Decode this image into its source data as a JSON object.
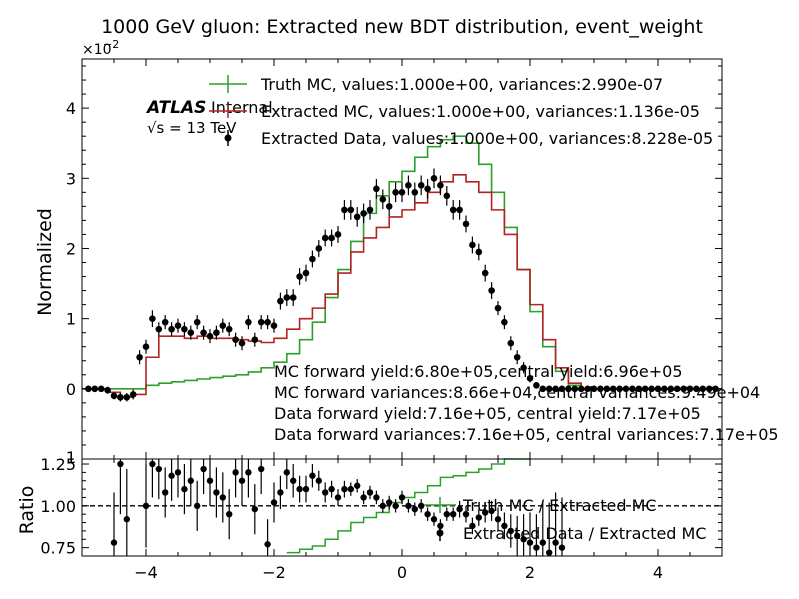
{
  "title": "1000 GeV gluon: Extracted new BDT distribution, event_weight",
  "top_panel": {
    "ylabel": "Normalized",
    "multiplier_base": "×10",
    "multiplier_exp": "−2",
    "yticks": [
      "0",
      "1",
      "2",
      "3",
      "4"
    ],
    "ytick_values": [
      0,
      1,
      2,
      3,
      4
    ],
    "bottom_cut_label": "1"
  },
  "bottom_panel": {
    "ylabel": "Ratio",
    "yticks": [
      "0.75",
      "1.00",
      "1.25"
    ],
    "ytick_values": [
      0.75,
      1.0,
      1.25
    ]
  },
  "xticks": [
    "−4",
    "−2",
    "0",
    "2",
    "4"
  ],
  "xtick_values": [
    -4,
    -2,
    0,
    2,
    4
  ],
  "atlas_label": {
    "bold": "ATLAS",
    "regular": "Internal",
    "energy": "√s = 13 TeV"
  },
  "legend_top": [
    {
      "label": "Truth MC, values:1.000e+00, variances:2.990e-07",
      "color": "#2ca02c",
      "style": "errorbar-line"
    },
    {
      "label": "Extracted MC, values:1.000e+00, variances:1.136e-05",
      "color": "#b22222",
      "style": "step"
    },
    {
      "label": "Extracted Data, values:1.000e+00, variances:8.228e-05",
      "color": "#000000",
      "style": "marker"
    }
  ],
  "yield_text": [
    "MC forward yield:6.80e+05,central yield:6.96e+05",
    "MC forward variances:8.66e+04,central variances:9.49e+04",
    "Data forward yield:7.16e+05, central yield:7.17e+05",
    "Data forward variances:7.16e+05, central variances:7.17e+05"
  ],
  "legend_bottom": [
    {
      "label": "Truth MC / Extracted MC",
      "color": "#2ca02c"
    },
    {
      "label": "Extracted Data / Extracted MC",
      "color": "#000000"
    }
  ],
  "chart_data": {
    "type": "line",
    "title": "1000 GeV gluon: Extracted new BDT distribution, event_weight",
    "xlabel": "",
    "ylabel": "Normalized",
    "xlim": [
      -5,
      5
    ],
    "ylim": [
      -1,
      4.7
    ],
    "y_scale_multiplier": "1e-2",
    "grid": false,
    "legend_position": "top",
    "bin_edges": [
      -5.0,
      -4.8,
      -4.6,
      -4.4,
      -4.2,
      -4.0,
      -3.8,
      -3.6,
      -3.4,
      -3.2,
      -3.0,
      -2.8,
      -2.6,
      -2.4,
      -2.2,
      -2.0,
      -1.8,
      -1.6,
      -1.4,
      -1.2,
      -1.0,
      -0.8,
      -0.6,
      -0.4,
      -0.2,
      0.0,
      0.2,
      0.4,
      0.6,
      0.8,
      1.0,
      1.2,
      1.4,
      1.6,
      1.8,
      2.0,
      2.2,
      2.4,
      2.6,
      2.8,
      3.0,
      3.2,
      3.4,
      3.6,
      3.8,
      4.0,
      4.2,
      4.4,
      4.6,
      4.8,
      5.0
    ],
    "series": [
      {
        "name": "Truth MC",
        "color": "#2ca02c",
        "kind": "step",
        "values": [
          0.0,
          0.0,
          0.0,
          0.0,
          0.0,
          0.05,
          0.08,
          0.1,
          0.12,
          0.14,
          0.16,
          0.18,
          0.2,
          0.24,
          0.3,
          0.38,
          0.5,
          0.7,
          0.95,
          1.3,
          1.7,
          2.1,
          2.5,
          2.75,
          2.95,
          3.1,
          3.3,
          3.45,
          3.55,
          3.6,
          3.5,
          3.2,
          2.8,
          2.3,
          1.7,
          1.1,
          0.6,
          0.25,
          0.05,
          0.0,
          0.0,
          0.0,
          0.0,
          0.0,
          0.0,
          0.0,
          0.0,
          0.0,
          0.0,
          0.0
        ]
      },
      {
        "name": "Extracted MC",
        "color": "#b22222",
        "kind": "step",
        "values": [
          0.0,
          0.0,
          -0.05,
          -0.12,
          -0.08,
          0.45,
          0.75,
          0.75,
          0.72,
          0.75,
          0.72,
          0.72,
          0.7,
          0.68,
          0.66,
          0.72,
          0.85,
          1.0,
          1.15,
          1.35,
          1.65,
          1.95,
          2.15,
          2.3,
          2.45,
          2.55,
          2.65,
          2.8,
          2.95,
          3.05,
          2.95,
          2.8,
          2.55,
          2.2,
          1.7,
          1.2,
          0.7,
          0.3,
          0.08,
          0.0,
          0.0,
          0.0,
          0.0,
          0.0,
          0.0,
          0.0,
          0.0,
          0.0,
          0.0,
          0.0
        ]
      },
      {
        "name": "Extracted Data",
        "color": "#000000",
        "kind": "points",
        "x": [
          -4.9,
          -4.8,
          -4.7,
          -4.6,
          -4.5,
          -4.4,
          -4.3,
          -4.2,
          -4.1,
          -4.0,
          -3.9,
          -3.8,
          -3.7,
          -3.6,
          -3.5,
          -3.4,
          -3.3,
          -3.2,
          -3.1,
          -3.0,
          -2.9,
          -2.8,
          -2.7,
          -2.6,
          -2.5,
          -2.4,
          -2.3,
          -2.2,
          -2.1,
          -2.0,
          -1.9,
          -1.8,
          -1.7,
          -1.6,
          -1.5,
          -1.4,
          -1.3,
          -1.2,
          -1.1,
          -1.0,
          -0.9,
          -0.8,
          -0.7,
          -0.6,
          -0.5,
          -0.4,
          -0.3,
          -0.2,
          -0.1,
          0.0,
          0.1,
          0.2,
          0.3,
          0.4,
          0.5,
          0.6,
          0.7,
          0.8,
          0.9,
          1.0,
          1.1,
          1.2,
          1.3,
          1.4,
          1.5,
          1.6,
          1.7,
          1.8,
          1.9,
          2.0,
          2.1,
          2.2,
          2.3,
          2.4,
          2.5,
          2.6,
          2.7,
          2.8,
          2.9,
          3.0,
          3.1,
          3.2,
          3.3,
          3.4,
          3.5,
          3.6,
          3.7,
          3.8,
          3.9,
          4.0,
          4.1,
          4.2,
          4.3,
          4.4,
          4.5,
          4.6,
          4.7,
          4.8,
          4.9
        ],
        "y": [
          0.0,
          0.0,
          0.0,
          -0.02,
          -0.1,
          -0.12,
          -0.12,
          -0.08,
          0.45,
          0.6,
          1.0,
          0.85,
          0.95,
          0.85,
          0.9,
          0.85,
          0.8,
          0.95,
          0.8,
          0.75,
          0.8,
          0.9,
          0.85,
          0.7,
          0.65,
          0.95,
          0.7,
          0.95,
          0.95,
          0.9,
          1.25,
          1.3,
          1.3,
          1.6,
          1.65,
          1.85,
          2.0,
          2.15,
          2.15,
          2.2,
          2.55,
          2.55,
          2.45,
          2.5,
          2.55,
          2.85,
          2.7,
          2.6,
          2.8,
          2.8,
          2.9,
          2.8,
          2.9,
          2.85,
          3.0,
          2.9,
          2.75,
          2.55,
          2.55,
          2.35,
          2.05,
          1.95,
          1.65,
          1.4,
          1.15,
          0.95,
          0.65,
          0.45,
          0.3,
          0.15,
          0.05,
          0.0,
          0.0,
          0.0,
          0.0,
          0.0,
          0.0,
          0.0,
          0.0,
          0.0,
          0.0,
          0.0,
          0.0,
          0.0,
          0.0,
          0.0,
          0.0,
          0.0,
          0.0,
          0.0,
          0.0,
          0.0,
          0.0,
          0.0,
          0.0,
          0.0,
          0.0,
          0.0,
          0.0
        ],
        "yerr": [
          0.02,
          0.02,
          0.02,
          0.05,
          0.05,
          0.06,
          0.06,
          0.07,
          0.1,
          0.1,
          0.12,
          0.1,
          0.1,
          0.1,
          0.1,
          0.1,
          0.1,
          0.1,
          0.1,
          0.1,
          0.1,
          0.1,
          0.1,
          0.1,
          0.1,
          0.1,
          0.1,
          0.1,
          0.1,
          0.1,
          0.12,
          0.12,
          0.12,
          0.12,
          0.12,
          0.12,
          0.12,
          0.12,
          0.12,
          0.12,
          0.14,
          0.14,
          0.14,
          0.14,
          0.14,
          0.14,
          0.14,
          0.14,
          0.14,
          0.14,
          0.14,
          0.14,
          0.14,
          0.14,
          0.14,
          0.14,
          0.14,
          0.14,
          0.14,
          0.12,
          0.12,
          0.12,
          0.12,
          0.12,
          0.1,
          0.1,
          0.1,
          0.1,
          0.08,
          0.06,
          0.04,
          0.02,
          0.02,
          0.02,
          0.02,
          0.02,
          0.02,
          0.02,
          0.02,
          0.02,
          0.02,
          0.02,
          0.02,
          0.02,
          0.02,
          0.02,
          0.02,
          0.02,
          0.02,
          0.02,
          0.02,
          0.02,
          0.02,
          0.02,
          0.02,
          0.02,
          0.02,
          0.02,
          0.02
        ]
      }
    ],
    "ratio_panel": {
      "ylabel": "Ratio",
      "ylim": [
        0.7,
        1.28
      ],
      "reference_line": 1.0,
      "series": [
        {
          "name": "Truth MC / Extracted MC",
          "color": "#2ca02c",
          "kind": "step",
          "x": [
            -1.8,
            -1.6,
            -1.4,
            -1.2,
            -1.0,
            -0.8,
            -0.6,
            -0.4,
            -0.2,
            0.0,
            0.2,
            0.4,
            0.6,
            0.8,
            1.0,
            1.2,
            1.4,
            1.6,
            1.8
          ],
          "values": [
            0.72,
            0.74,
            0.76,
            0.8,
            0.85,
            0.9,
            0.93,
            0.96,
            1.02,
            1.05,
            1.08,
            1.12,
            1.17,
            1.18,
            1.2,
            1.22,
            1.25,
            1.28,
            1.3
          ]
        },
        {
          "name": "Extracted Data / Extracted MC",
          "color": "#000000",
          "kind": "points",
          "x": [
            -4.5,
            -4.4,
            -4.3,
            -4.0,
            -3.9,
            -3.8,
            -3.7,
            -3.6,
            -3.5,
            -3.4,
            -3.3,
            -3.2,
            -3.1,
            -3.0,
            -2.9,
            -2.8,
            -2.7,
            -2.6,
            -2.5,
            -2.4,
            -2.3,
            -2.2,
            -2.1,
            -2.0,
            -1.9,
            -1.8,
            -1.7,
            -1.6,
            -1.5,
            -1.4,
            -1.3,
            -1.2,
            -1.1,
            -1.0,
            -0.9,
            -0.8,
            -0.7,
            -0.6,
            -0.5,
            -0.4,
            -0.3,
            -0.2,
            -0.1,
            0.0,
            0.1,
            0.2,
            0.3,
            0.4,
            0.5,
            0.6,
            0.7,
            0.8,
            0.9,
            1.0,
            1.1,
            1.2,
            1.3,
            1.4,
            1.5,
            1.6,
            1.7,
            1.8,
            1.9,
            2.0,
            2.1,
            2.2,
            2.3,
            2.4,
            2.5
          ],
          "y": [
            0.78,
            1.25,
            0.92,
            1.0,
            1.25,
            1.22,
            1.08,
            1.18,
            1.2,
            1.1,
            1.15,
            1.0,
            1.22,
            1.15,
            1.08,
            1.05,
            0.95,
            1.2,
            1.15,
            1.2,
            0.98,
            1.22,
            0.77,
            1.02,
            1.08,
            1.2,
            1.15,
            1.1,
            1.1,
            1.18,
            1.15,
            1.08,
            1.1,
            1.05,
            1.1,
            1.1,
            1.12,
            1.05,
            1.08,
            1.05,
            1.0,
            1.02,
            1.0,
            1.05,
            1.0,
            0.98,
            1.0,
            0.95,
            0.92,
            0.88,
            0.95,
            0.95,
            0.98,
            0.95,
            0.88,
            0.93,
            0.96,
            0.97,
            0.92,
            0.88,
            0.85,
            0.82,
            0.8,
            0.78,
            0.75,
            0.78,
            0.72,
            0.78,
            0.75
          ],
          "yerr": [
            0.3,
            0.3,
            0.3,
            0.25,
            0.2,
            0.18,
            0.15,
            0.15,
            0.15,
            0.15,
            0.15,
            0.15,
            0.15,
            0.15,
            0.15,
            0.15,
            0.15,
            0.15,
            0.15,
            0.15,
            0.15,
            0.15,
            0.15,
            0.12,
            0.1,
            0.1,
            0.1,
            0.08,
            0.08,
            0.07,
            0.06,
            0.06,
            0.05,
            0.05,
            0.05,
            0.04,
            0.04,
            0.04,
            0.04,
            0.04,
            0.04,
            0.04,
            0.04,
            0.04,
            0.04,
            0.04,
            0.04,
            0.04,
            0.04,
            0.04,
            0.04,
            0.04,
            0.05,
            0.05,
            0.05,
            0.05,
            0.06,
            0.06,
            0.07,
            0.08,
            0.1,
            0.12,
            0.15,
            0.18,
            0.2,
            0.25,
            0.3,
            0.3,
            0.3
          ]
        }
      ]
    }
  }
}
